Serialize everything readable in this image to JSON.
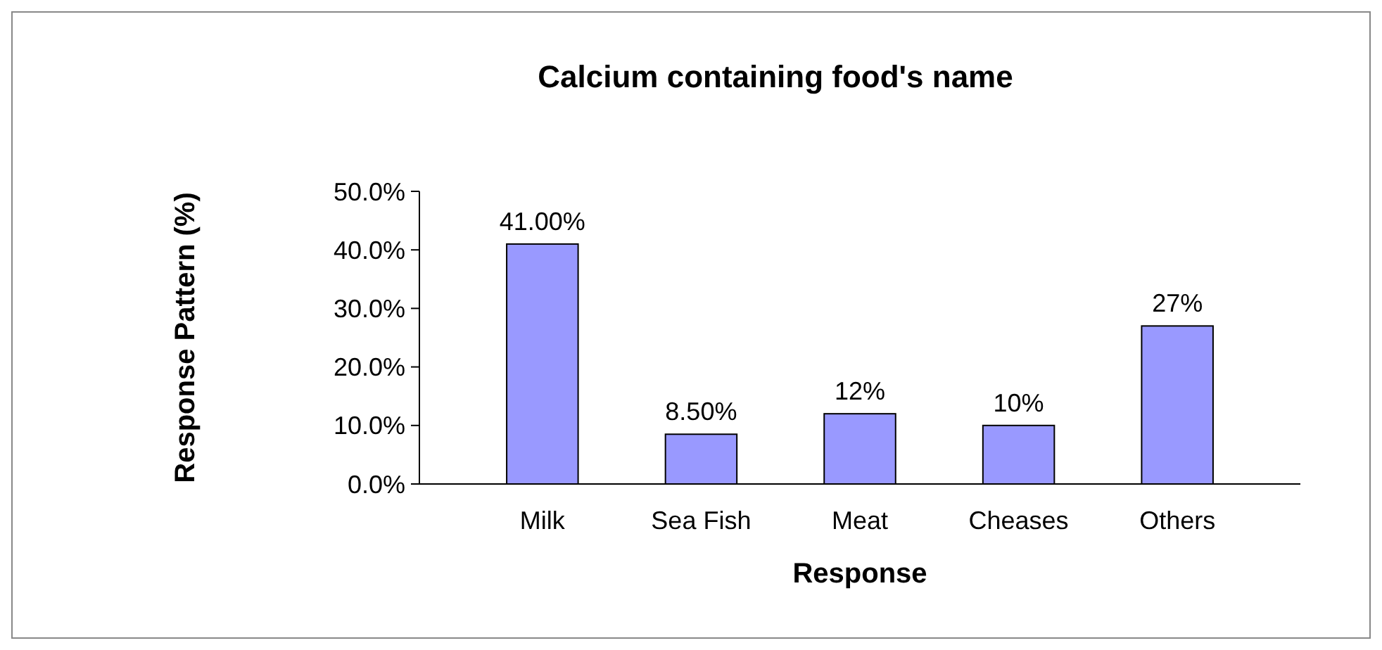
{
  "chart_data": {
    "type": "bar",
    "title": "Calcium containing food's name",
    "xlabel": "Response",
    "ylabel": "Response Pattern (%)",
    "categories": [
      "Milk",
      "Sea Fish",
      "Meat",
      "Cheases",
      "Others"
    ],
    "values": [
      41,
      8.5,
      12,
      10,
      27
    ],
    "value_labels": [
      "41.00%",
      "8.50%",
      "12%",
      "10%",
      "27%"
    ],
    "color": "#9999ff",
    "ylim": [
      0,
      50
    ],
    "yticks": [
      {
        "value": 0,
        "label": "0.0%"
      },
      {
        "value": 10,
        "label": "10.0%"
      },
      {
        "value": 20,
        "label": "20.0%"
      },
      {
        "value": 30,
        "label": "30.0%"
      },
      {
        "value": 40,
        "label": "40.0%"
      },
      {
        "value": 50,
        "label": "50.0%"
      }
    ],
    "grid": false
  }
}
